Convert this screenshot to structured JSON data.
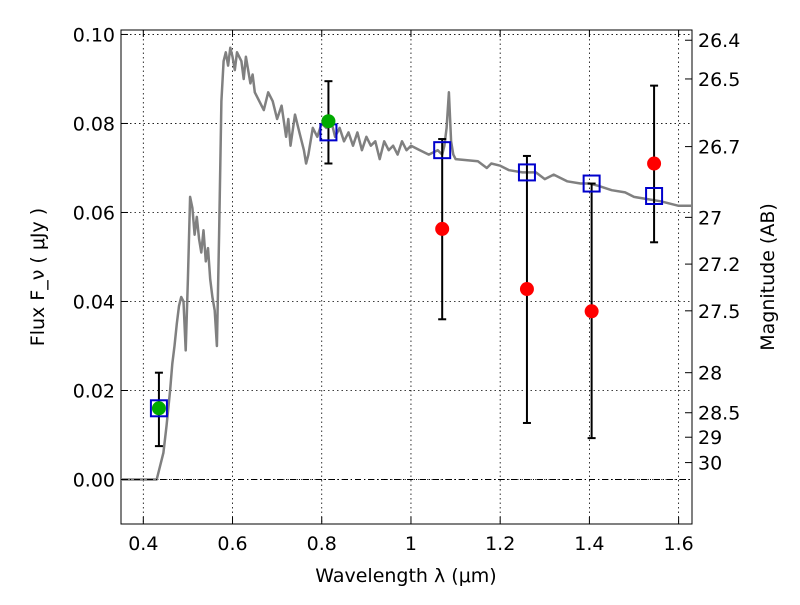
{
  "chart_data": {
    "type": "scatter",
    "xlabel": "Wavelength  λ (μm)",
    "ylabel": "Flux  F_ν  ( μJy )",
    "ylabel_right": "Magnitude (AB)",
    "xlim": [
      0.35,
      1.63
    ],
    "ylim": [
      -0.01,
      0.101
    ],
    "x_ticks": [
      {
        "value": 0.4,
        "label": "0.4"
      },
      {
        "value": 0.6,
        "label": "0.6"
      },
      {
        "value": 0.8,
        "label": "0.8"
      },
      {
        "value": 1.0,
        "label": "1"
      },
      {
        "value": 1.2,
        "label": "1.2"
      },
      {
        "value": 1.4,
        "label": "1.4"
      },
      {
        "value": 1.6,
        "label": "1.6"
      }
    ],
    "y_ticks": [
      {
        "value": 0.0,
        "label": "0.00"
      },
      {
        "value": 0.02,
        "label": "0.02"
      },
      {
        "value": 0.04,
        "label": "0.04"
      },
      {
        "value": 0.06,
        "label": "0.06"
      },
      {
        "value": 0.08,
        "label": "0.08"
      },
      {
        "value": 0.1,
        "label": "0.10"
      }
    ],
    "right_ticks": [
      {
        "flux": 0.0987,
        "label": "26.4"
      },
      {
        "flux": 0.09,
        "label": "26.5"
      },
      {
        "flux": 0.0748,
        "label": "26.7"
      },
      {
        "flux": 0.0589,
        "label": "27"
      },
      {
        "flux": 0.0484,
        "label": "27.2"
      },
      {
        "flux": 0.0379,
        "label": "27.5"
      },
      {
        "flux": 0.024,
        "label": "28"
      },
      {
        "flux": 0.015,
        "label": "28.5"
      },
      {
        "flux": 0.0095,
        "label": "29"
      },
      {
        "flux": 0.0038,
        "label": "30"
      }
    ],
    "grid": true,
    "series": [
      {
        "kind": "line",
        "color": "#808080",
        "points": [
          [
            0.35,
            0.0
          ],
          [
            0.43,
            0.0
          ],
          [
            0.445,
            0.006
          ],
          [
            0.452,
            0.012
          ],
          [
            0.46,
            0.02
          ],
          [
            0.465,
            0.026
          ],
          [
            0.47,
            0.03
          ],
          [
            0.475,
            0.035
          ],
          [
            0.48,
            0.039
          ],
          [
            0.485,
            0.041
          ],
          [
            0.49,
            0.04
          ],
          [
            0.495,
            0.029
          ],
          [
            0.5,
            0.045
          ],
          [
            0.505,
            0.0635
          ],
          [
            0.51,
            0.061
          ],
          [
            0.515,
            0.055
          ],
          [
            0.52,
            0.059
          ],
          [
            0.525,
            0.054
          ],
          [
            0.53,
            0.051
          ],
          [
            0.535,
            0.056
          ],
          [
            0.54,
            0.049
          ],
          [
            0.545,
            0.052
          ],
          [
            0.55,
            0.045
          ],
          [
            0.555,
            0.041
          ],
          [
            0.56,
            0.038
          ],
          [
            0.565,
            0.03
          ],
          [
            0.57,
            0.055
          ],
          [
            0.575,
            0.085
          ],
          [
            0.58,
            0.094
          ],
          [
            0.585,
            0.096
          ],
          [
            0.59,
            0.093
          ],
          [
            0.595,
            0.097
          ],
          [
            0.6,
            0.095
          ],
          [
            0.605,
            0.092
          ],
          [
            0.61,
            0.096
          ],
          [
            0.62,
            0.094
          ],
          [
            0.625,
            0.09
          ],
          [
            0.63,
            0.095
          ],
          [
            0.64,
            0.089
          ],
          [
            0.645,
            0.091
          ],
          [
            0.65,
            0.087
          ],
          [
            0.66,
            0.085
          ],
          [
            0.67,
            0.083
          ],
          [
            0.68,
            0.087
          ],
          [
            0.69,
            0.085
          ],
          [
            0.7,
            0.081
          ],
          [
            0.71,
            0.084
          ],
          [
            0.72,
            0.077
          ],
          [
            0.725,
            0.081
          ],
          [
            0.73,
            0.075
          ],
          [
            0.74,
            0.082
          ],
          [
            0.75,
            0.078
          ],
          [
            0.76,
            0.074
          ],
          [
            0.765,
            0.071
          ],
          [
            0.77,
            0.073
          ],
          [
            0.78,
            0.079
          ],
          [
            0.79,
            0.077
          ],
          [
            0.8,
            0.08
          ],
          [
            0.81,
            0.079
          ],
          [
            0.82,
            0.081
          ],
          [
            0.83,
            0.077
          ],
          [
            0.84,
            0.079
          ],
          [
            0.85,
            0.076
          ],
          [
            0.86,
            0.078
          ],
          [
            0.87,
            0.075
          ],
          [
            0.88,
            0.078
          ],
          [
            0.89,
            0.074
          ],
          [
            0.9,
            0.077
          ],
          [
            0.91,
            0.075
          ],
          [
            0.92,
            0.076
          ],
          [
            0.93,
            0.072
          ],
          [
            0.94,
            0.076
          ],
          [
            0.95,
            0.074
          ],
          [
            0.96,
            0.075
          ],
          [
            0.97,
            0.073
          ],
          [
            0.98,
            0.076
          ],
          [
            0.99,
            0.074
          ],
          [
            1.0,
            0.075
          ],
          [
            1.02,
            0.074
          ],
          [
            1.04,
            0.073
          ],
          [
            1.06,
            0.074
          ],
          [
            1.07,
            0.073
          ],
          [
            1.075,
            0.075
          ],
          [
            1.08,
            0.079
          ],
          [
            1.085,
            0.087
          ],
          [
            1.09,
            0.076
          ],
          [
            1.095,
            0.073
          ],
          [
            1.1,
            0.072
          ],
          [
            1.15,
            0.0715
          ],
          [
            1.17,
            0.07
          ],
          [
            1.18,
            0.071
          ],
          [
            1.2,
            0.0705
          ],
          [
            1.22,
            0.0695
          ],
          [
            1.25,
            0.069
          ],
          [
            1.28,
            0.069
          ],
          [
            1.3,
            0.0675
          ],
          [
            1.32,
            0.0685
          ],
          [
            1.35,
            0.067
          ],
          [
            1.38,
            0.0665
          ],
          [
            1.4,
            0.0665
          ],
          [
            1.42,
            0.066
          ],
          [
            1.45,
            0.065
          ],
          [
            1.48,
            0.0645
          ],
          [
            1.5,
            0.0635
          ],
          [
            1.53,
            0.063
          ],
          [
            1.56,
            0.0625
          ],
          [
            1.6,
            0.0615
          ],
          [
            1.63,
            0.0615
          ]
        ]
      },
      {
        "kind": "errorbar",
        "color": "#000000",
        "points": [
          {
            "x": 0.435,
            "low": 0.0075,
            "high": 0.024
          },
          {
            "x": 0.815,
            "low": 0.071,
            "high": 0.0895
          },
          {
            "x": 1.07,
            "low": 0.036,
            "high": 0.0765
          },
          {
            "x": 1.26,
            "low": 0.0127,
            "high": 0.0727
          },
          {
            "x": 1.405,
            "low": 0.0093,
            "high": 0.0665
          },
          {
            "x": 1.545,
            "low": 0.0533,
            "high": 0.0885
          }
        ]
      },
      {
        "kind": "marker-square",
        "color": "#0000cc",
        "points": [
          [
            0.435,
            0.016
          ],
          [
            0.815,
            0.078
          ],
          [
            1.07,
            0.074
          ],
          [
            1.26,
            0.069
          ],
          [
            1.405,
            0.0665
          ],
          [
            1.545,
            0.0637
          ]
        ]
      },
      {
        "kind": "marker-circle",
        "color": "#00aa00",
        "points": [
          [
            0.435,
            0.016
          ],
          [
            0.815,
            0.0805
          ]
        ]
      },
      {
        "kind": "marker-circle",
        "color": "#ff0000",
        "points": [
          [
            1.07,
            0.0563
          ],
          [
            1.26,
            0.0428
          ],
          [
            1.405,
            0.0378
          ],
          [
            1.545,
            0.071
          ]
        ]
      }
    ]
  }
}
